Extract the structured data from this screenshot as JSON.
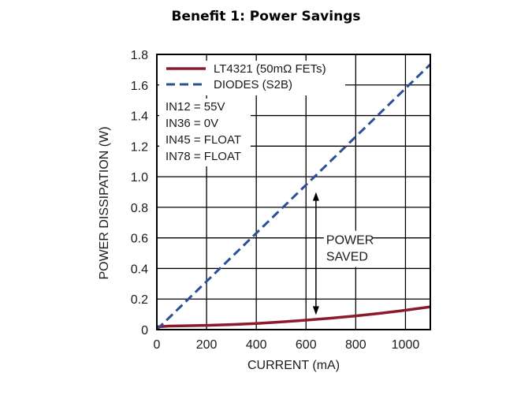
{
  "page": {
    "title": "Benefit 1: Power Savings"
  },
  "chart_data": {
    "type": "line",
    "title": "",
    "xlabel": "CURRENT (mA)",
    "ylabel": "POWER DISSIPATION (W)",
    "xlim": [
      0,
      1100
    ],
    "ylim": [
      0,
      1.8
    ],
    "xticks": [
      0,
      200,
      400,
      600,
      800,
      1000
    ],
    "yticks": [
      0,
      0.2,
      0.4,
      0.6,
      0.8,
      1.0,
      1.2,
      1.4,
      1.6,
      1.8
    ],
    "xtick_labels": [
      "0",
      "200",
      "400",
      "600",
      "800",
      "1000"
    ],
    "ytick_labels": [
      "0",
      "0.2",
      "0.4",
      "0.6",
      "0.8",
      "1.0",
      "1.2",
      "1.4",
      "1.6",
      "1.8"
    ],
    "grid": true,
    "legend_position": "top-left",
    "series": [
      {
        "name": "LT4321 (50mΩ FETs)",
        "color": "#8b1a2b",
        "style": "solid",
        "x": [
          0,
          50,
          100,
          200,
          300,
          400,
          500,
          600,
          700,
          800,
          900,
          1000,
          1100
        ],
        "y": [
          0.018,
          0.023,
          0.025,
          0.028,
          0.033,
          0.04,
          0.05,
          0.062,
          0.075,
          0.09,
          0.107,
          0.127,
          0.149
        ]
      },
      {
        "name": "DIODES (S2B)",
        "color": "#2c4f9a",
        "style": "dashed",
        "x": [
          0,
          1100
        ],
        "y": [
          0,
          1.735
        ]
      }
    ],
    "conditions": [
      "IN12 = 55V",
      "IN36 = 0V",
      "IN45 = FLOAT",
      "IN78 = FLOAT"
    ],
    "annotations": [
      {
        "text": [
          "POWER",
          "SAVED"
        ],
        "x": 640,
        "y_from": 0.065,
        "y_to": 0.93
      }
    ]
  }
}
